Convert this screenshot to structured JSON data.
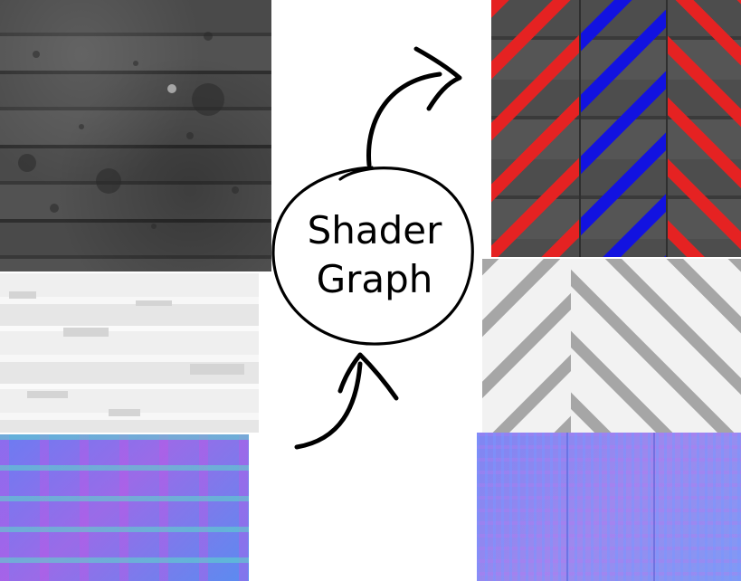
{
  "diagram": {
    "node": {
      "line1": "Shader",
      "line2": "Graph"
    }
  },
  "colors": {
    "stripe_red": "#e52222",
    "stripe_blue": "#1212e0",
    "stripe_grey": "#a6a6a6",
    "ink": "#000000"
  }
}
